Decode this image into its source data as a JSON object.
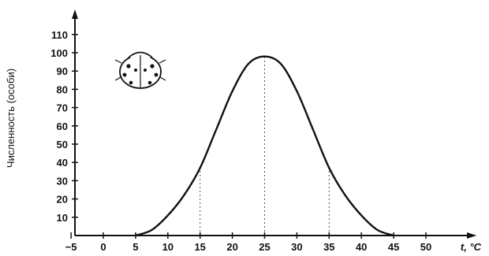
{
  "chart_data": {
    "type": "line",
    "title": "",
    "ylabel": "Численность (особи)",
    "xlabel": "t, °C",
    "xlim": [
      -5,
      52
    ],
    "ylim": [
      0,
      115
    ],
    "x_ticks": [
      -5,
      0,
      5,
      10,
      15,
      20,
      25,
      30,
      35,
      40,
      45,
      50
    ],
    "y_ticks": [
      10,
      20,
      30,
      40,
      50,
      60,
      70,
      80,
      90,
      100,
      110
    ],
    "series": [
      {
        "x": [
          5,
          7.5,
          10,
          12.5,
          15,
          17.5,
          20,
          22.5,
          25,
          27.5,
          30,
          32.5,
          35,
          37.5,
          40,
          42.5,
          45
        ],
        "y": [
          0,
          3,
          11,
          22,
          37,
          58,
          79,
          94,
          98,
          94,
          79,
          58,
          37,
          22,
          11,
          3,
          0
        ]
      }
    ],
    "dashed_guides_at_x": [
      15,
      25,
      35
    ],
    "grid": false,
    "legend": "none",
    "colors": {
      "line": "#111111",
      "background": "#ffffff"
    },
    "icon": "ladybug-icon"
  }
}
